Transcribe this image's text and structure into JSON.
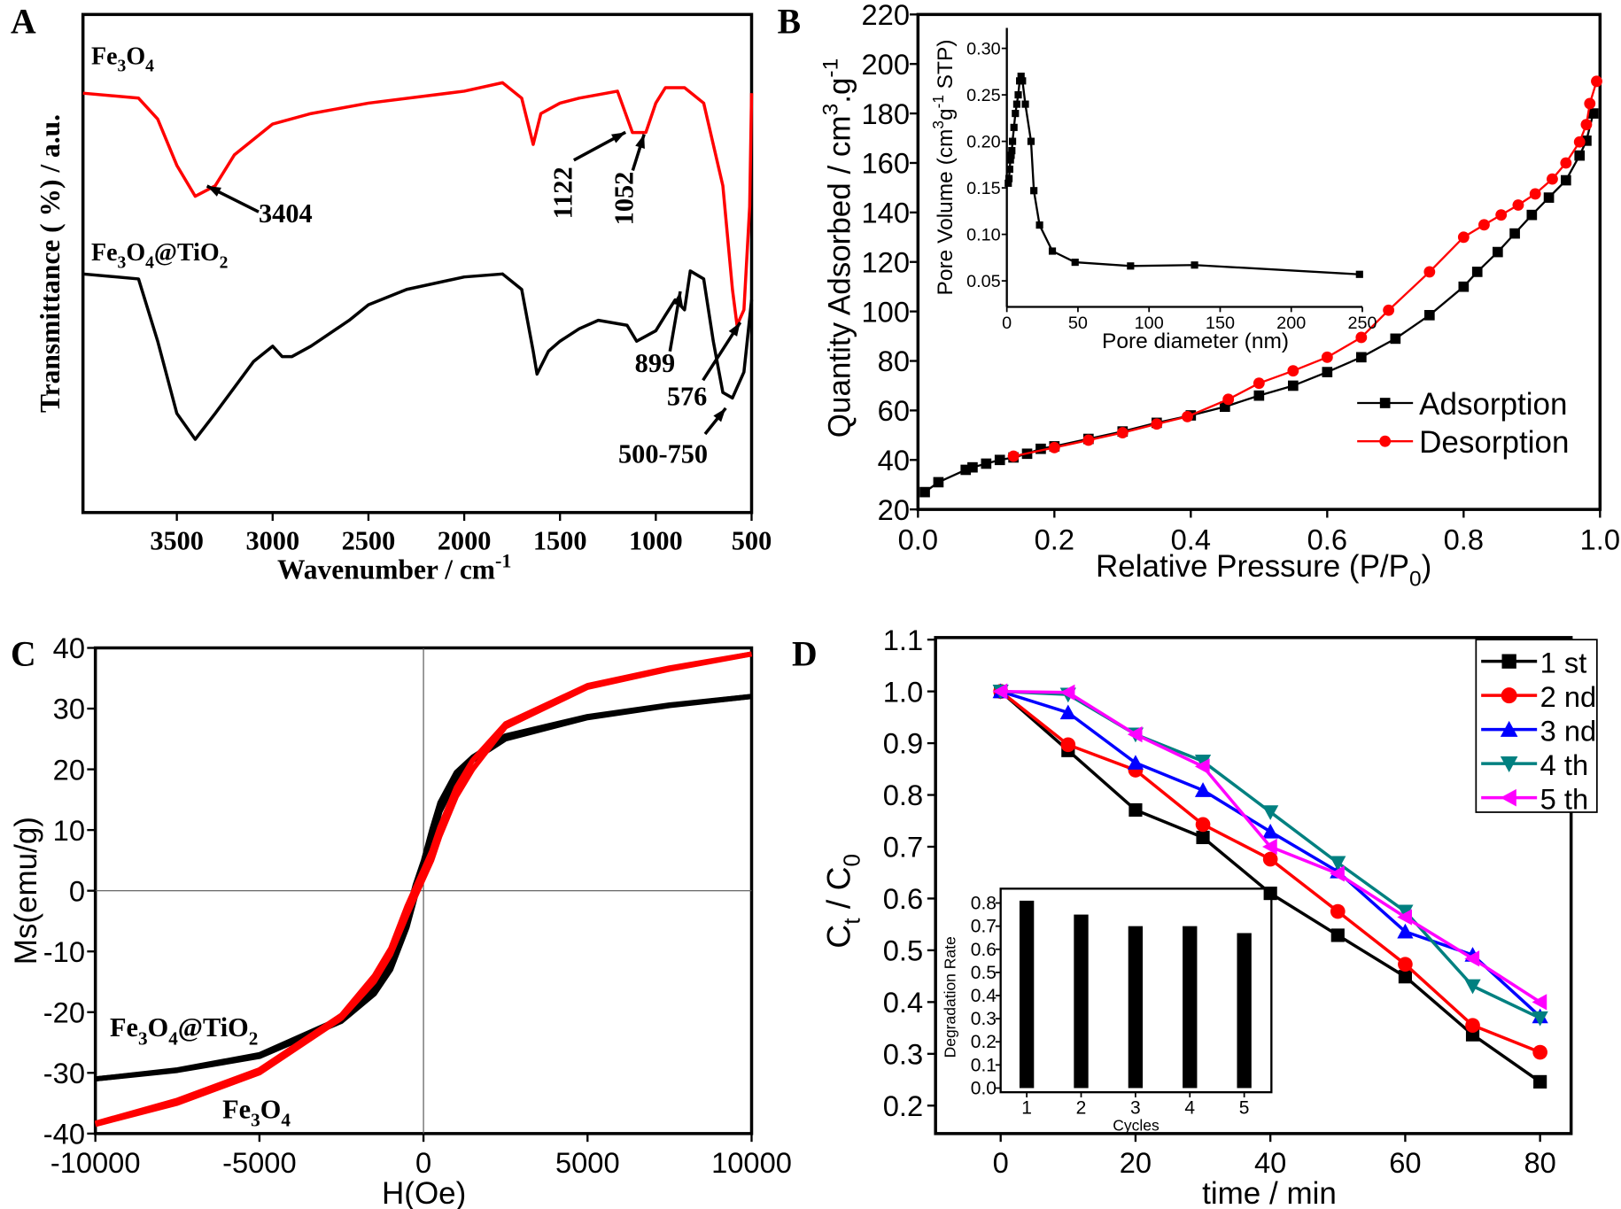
{
  "chart_data": [
    {
      "panel": "A",
      "type": "line",
      "xlabel": "Wavenumber  / cm^{-1}",
      "ylabel": "Transmittance ( %) / a.u.",
      "xlim": [
        3990,
        500
      ],
      "ylim": [
        0,
        100
      ],
      "xticks": [
        3500,
        3000,
        2500,
        2000,
        1500,
        1000,
        500
      ],
      "series": [
        {
          "name": "Fe_{3}O_{4}",
          "color": "#ff0000",
          "x": [
            3990,
            3700,
            3600,
            3500,
            3404,
            3300,
            3200,
            3000,
            2800,
            2500,
            2000,
            1800,
            1700,
            1640,
            1600,
            1500,
            1400,
            1200,
            1122,
            1052,
            1000,
            950,
            850,
            750,
            650,
            600,
            576,
            540,
            510,
            500
          ],
          "y": [
            84.2,
            83.2,
            79,
            69.7,
            63.5,
            65.6,
            71.8,
            78,
            80.1,
            82.2,
            84.6,
            86.3,
            83.2,
            73.9,
            80.1,
            82.2,
            83.2,
            84.6,
            76.3,
            76.3,
            82.2,
            85.3,
            85.3,
            82.2,
            65.6,
            44.8,
            37.6,
            40.7,
            61.4,
            84.2
          ]
        },
        {
          "name": "Fe_{3}O_{4}@TiO_{2}",
          "color": "#000000",
          "x": [
            3990,
            3700,
            3600,
            3500,
            3404,
            3300,
            3100,
            3000,
            2950,
            2900,
            2800,
            2600,
            2500,
            2300,
            2000,
            1800,
            1700,
            1640,
            1620,
            1560,
            1500,
            1400,
            1300,
            1150,
            1100,
            1000,
            950,
            899,
            850,
            820,
            750,
            700,
            650,
            600,
            576,
            540,
            500
          ],
          "y": [
            47.9,
            46.9,
            34.4,
            19.9,
            14.7,
            19.9,
            30.3,
            33.4,
            31.3,
            31.3,
            33.4,
            38.6,
            41.7,
            44.8,
            47.3,
            47.9,
            44.8,
            32.4,
            27.8,
            32.4,
            34.4,
            36.9,
            38.6,
            37.6,
            34.4,
            36.5,
            39.6,
            42.7,
            40.7,
            48.5,
            46.9,
            34.4,
            24.1,
            23,
            25.1,
            28.2,
            42.7
          ]
        }
      ],
      "annotations": [
        "3404",
        "1122",
        "1052",
        "899",
        "576",
        "500-750"
      ]
    },
    {
      "panel": "B",
      "type": "line",
      "xlabel": "Relative Pressure (P/P_{0})",
      "ylabel": "Quantity Adsorbed / cm^{3}.g^{-1}",
      "xlim": [
        0,
        1
      ],
      "ylim": [
        20,
        220
      ],
      "xticks": [
        0.0,
        0.2,
        0.4,
        0.6,
        0.8,
        1.0
      ],
      "yticks": [
        20,
        40,
        60,
        80,
        100,
        120,
        140,
        160,
        180,
        200,
        220
      ],
      "legend": "bottom-right",
      "series": [
        {
          "name": "Adsorption",
          "color": "#000000",
          "marker": "square",
          "x": [
            0.01,
            0.03,
            0.07,
            0.08,
            0.1,
            0.12,
            0.14,
            0.16,
            0.18,
            0.2,
            0.25,
            0.3,
            0.35,
            0.4,
            0.45,
            0.5,
            0.55,
            0.6,
            0.65,
            0.7,
            0.75,
            0.8,
            0.82,
            0.85,
            0.875,
            0.9,
            0.925,
            0.95,
            0.97,
            0.98,
            0.99
          ],
          "y": [
            27,
            31,
            36,
            37,
            38.5,
            40,
            41,
            42.5,
            44.5,
            45.5,
            48.5,
            51.5,
            55,
            58,
            61.5,
            66,
            70,
            75.5,
            81.5,
            89,
            98.5,
            110,
            116,
            124,
            131.5,
            139,
            146,
            153,
            163,
            169,
            180
          ]
        },
        {
          "name": "Desorption",
          "color": "#ff0000",
          "marker": "circle",
          "x": [
            0.14,
            0.2,
            0.25,
            0.3,
            0.35,
            0.395,
            0.455,
            0.5,
            0.55,
            0.6,
            0.65,
            0.69,
            0.75,
            0.8,
            0.83,
            0.855,
            0.88,
            0.905,
            0.93,
            0.95,
            0.97,
            0.98,
            0.985,
            0.995
          ],
          "y": [
            41.5,
            45,
            48,
            51,
            54.5,
            57.5,
            64.5,
            71,
            76,
            81.5,
            89.5,
            100.5,
            116,
            130,
            135,
            139,
            143,
            147.5,
            153.5,
            160,
            168.5,
            175.5,
            184,
            193
          ]
        }
      ],
      "inset": {
        "type": "line",
        "xlabel": "Pore diameter (nm)",
        "ylabel": "Pore Volume (cm^{3}g^{-1} STP)",
        "xlim": [
          0,
          250
        ],
        "ylim": [
          0.022,
          0.322
        ],
        "xticks": [
          0,
          50,
          100,
          150,
          200,
          250
        ],
        "yticks": [
          0.05,
          0.1,
          0.15,
          0.2,
          0.25,
          0.3
        ],
        "series": [
          {
            "name": "Pore volume",
            "color": "#000000",
            "marker": "square",
            "x": [
              1,
              1.5,
              2,
              2.5,
              3,
              3.5,
              4,
              5,
              6,
              7,
              8,
              9,
              10,
              11,
              13,
              17,
              19,
              23,
              32,
              48,
              87,
              132,
              248
            ],
            "y": [
              0.155,
              0.16,
              0.17,
              0.18,
              0.185,
              0.19,
              0.2,
              0.215,
              0.23,
              0.24,
              0.25,
              0.265,
              0.27,
              0.265,
              0.24,
              0.2,
              0.147,
              0.11,
              0.082,
              0.07,
              0.066,
              0.067,
              0.057
            ]
          }
        ]
      }
    },
    {
      "panel": "C",
      "type": "line",
      "xlabel": "H(Oe)",
      "ylabel": "Ms(emu/g)",
      "xlim": [
        -10000,
        10000
      ],
      "ylim": [
        -40,
        40
      ],
      "xticks": [
        -10000,
        -5000,
        0,
        5000,
        10000
      ],
      "yticks": [
        -40,
        -30,
        -20,
        -10,
        0,
        10,
        20,
        30,
        40
      ],
      "x": [
        -10000,
        -7500,
        -5000,
        -2500,
        -1500,
        -1000,
        -500,
        -250,
        0,
        250,
        500,
        1000,
        1500,
        2500,
        5000,
        7500,
        10000
      ],
      "series": [
        {
          "name": "Fe_{3}O_{4}@TiO_{2}",
          "color": "#000000",
          "ascending": [
            -31,
            -29.6,
            -27.3,
            -21.5,
            -17,
            -13,
            -6,
            -1,
            3,
            8,
            13,
            18.5,
            21.5,
            25,
            28.5,
            30.5,
            32
          ],
          "descending": [
            -31,
            -29.5,
            -27,
            -21,
            -16,
            -12,
            -4,
            1,
            5,
            10,
            14.5,
            19.5,
            22,
            25.5,
            28.7,
            30.6,
            32
          ]
        },
        {
          "name": "Fe_{3}O_{4}",
          "color": "#ff0000",
          "ascending": [
            -38.5,
            -35,
            -30,
            -21,
            -15,
            -10.5,
            -4,
            -1,
            2,
            5,
            9,
            15.5,
            20,
            27,
            33.5,
            36.5,
            39
          ],
          "descending": [
            -38.3,
            -34.5,
            -29.5,
            -20.5,
            -14,
            -9.5,
            -2.5,
            0.5,
            3.5,
            6.5,
            10.5,
            17,
            21.5,
            27.5,
            33.8,
            36.7,
            39
          ]
        }
      ]
    },
    {
      "panel": "D",
      "type": "line",
      "xlabel": "time / min",
      "ylabel": "C_{t} / C_{0}",
      "xlim": [
        -9.66,
        84.6
      ],
      "ylim": [
        0.146,
        1.104
      ],
      "xticks": [
        0,
        20,
        40,
        60,
        80
      ],
      "yticks": [
        0.2,
        0.3,
        0.4,
        0.5,
        0.6,
        0.7,
        0.8,
        0.9,
        1.0,
        1.1
      ],
      "legend": "top-right",
      "x": [
        0,
        10,
        20,
        30,
        40,
        50,
        60,
        70,
        80
      ],
      "series": [
        {
          "name": "1 st",
          "color": "#000000",
          "marker": "square",
          "values": [
            1.0,
            0.886,
            0.771,
            0.718,
            0.61,
            0.529,
            0.449,
            0.337,
            0.246
          ]
        },
        {
          "name": "2 nd",
          "color": "#ff0000",
          "marker": "circle",
          "values": [
            1.0,
            0.897,
            0.848,
            0.743,
            0.676,
            0.575,
            0.473,
            0.355,
            0.303
          ]
        },
        {
          "name": "3 nd",
          "color": "#0000ff",
          "marker": "triangle-up",
          "values": [
            1.0,
            0.959,
            0.862,
            0.809,
            0.729,
            0.652,
            0.536,
            0.491,
            0.372
          ]
        },
        {
          "name": "4 th",
          "color": "#008080",
          "marker": "triangle-down",
          "values": [
            1.0,
            0.994,
            0.917,
            0.865,
            0.767,
            0.669,
            0.575,
            0.431,
            0.369
          ]
        },
        {
          "name": "5 th",
          "color": "#ff00ff",
          "marker": "triangle-left",
          "values": [
            1.0,
            0.998,
            0.917,
            0.855,
            0.7,
            0.648,
            0.564,
            0.484,
            0.4
          ]
        }
      ],
      "inset": {
        "type": "bar",
        "xlabel": "Cycles",
        "ylabel": "Degradation Rate",
        "categories": [
          "1",
          "2",
          "3",
          "4",
          "5"
        ],
        "values": [
          0.81,
          0.75,
          0.7,
          0.7,
          0.67
        ],
        "xlim": [
          0.52,
          5.5
        ],
        "ylim": [
          -0.018,
          0.862
        ],
        "yticks": [
          0.0,
          0.1,
          0.2,
          0.3,
          0.4,
          0.5,
          0.6,
          0.7,
          0.8
        ]
      }
    }
  ],
  "panel_letters": [
    "A",
    "B",
    "C",
    "D"
  ]
}
